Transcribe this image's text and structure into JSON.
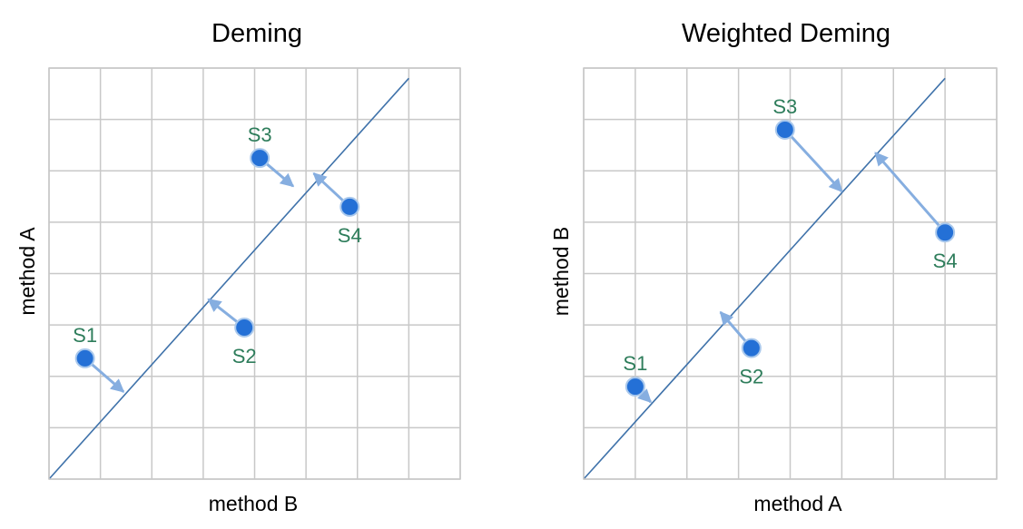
{
  "colors": {
    "grid": "#c8c8c8",
    "line": "#3f72aa",
    "point_fill": "#2470d6",
    "point_stroke": "#a9c8ec",
    "arrow": "#86aee0",
    "label": "#2e7d5b"
  },
  "panels": [
    {
      "id": "deming",
      "title": "Deming",
      "xlabel": "method B",
      "ylabel": "method A",
      "line": [
        [
          0,
          0.0
        ],
        [
          7.0,
          7.8
        ]
      ],
      "points": [
        {
          "label": "S1",
          "x": 0.7,
          "y": 2.35,
          "foot": [
            1.45,
            1.7
          ],
          "label_pos": "above"
        },
        {
          "label": "S2",
          "x": 3.8,
          "y": 2.95,
          "foot": [
            3.1,
            3.5
          ],
          "label_pos": "below"
        },
        {
          "label": "S3",
          "x": 4.1,
          "y": 6.25,
          "foot": [
            4.75,
            5.7
          ],
          "label_pos": "above"
        },
        {
          "label": "S4",
          "x": 5.85,
          "y": 5.3,
          "foot": [
            5.15,
            5.95
          ],
          "label_pos": "below"
        }
      ]
    },
    {
      "id": "weighted-deming",
      "title": "Weighted Deming",
      "xlabel": "method A",
      "ylabel": "method B",
      "line": [
        [
          0,
          0.0
        ],
        [
          7.0,
          7.8
        ]
      ],
      "points": [
        {
          "label": "S1",
          "x": 1.0,
          "y": 1.8,
          "foot": [
            1.3,
            1.5
          ],
          "label_pos": "above"
        },
        {
          "label": "S2",
          "x": 3.25,
          "y": 2.55,
          "foot": [
            2.65,
            3.25
          ],
          "label_pos": "below"
        },
        {
          "label": "S3",
          "x": 3.9,
          "y": 6.8,
          "foot": [
            5.0,
            5.6
          ],
          "label_pos": "above"
        },
        {
          "label": "S4",
          "x": 7.0,
          "y": 4.8,
          "foot": [
            5.65,
            6.35
          ],
          "label_pos": "below"
        }
      ]
    }
  ]
}
